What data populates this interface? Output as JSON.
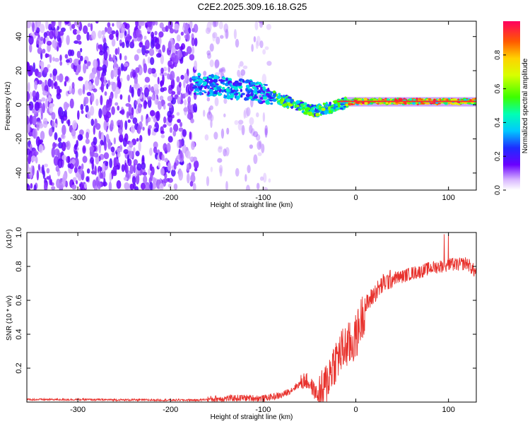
{
  "title": "C2E2.2025.309.16.18.G25",
  "chart_data": [
    {
      "type": "heatmap",
      "xlabel": "Height of straight line (km)",
      "ylabel": "Frequency (Hz)",
      "xlim": [
        -355,
        130
      ],
      "ylim": [
        -50,
        49
      ],
      "xticks": [
        -300,
        -200,
        -100,
        0,
        100
      ],
      "yticks": [
        -40,
        -20,
        0,
        20,
        40
      ],
      "colorbar": {
        "label": "Normalized spectral amplitude",
        "range": [
          0,
          1
        ],
        "ticks": [
          0.0,
          0.2,
          0.4,
          0.6,
          0.8
        ]
      },
      "ridge_trace": {
        "x": [
          -170,
          -150,
          -130,
          -110,
          -100,
          -90,
          -80,
          -70,
          -60,
          -50,
          -45,
          -40,
          -30,
          -20,
          -10,
          0,
          10,
          30,
          60,
          90,
          130
        ],
        "y": [
          12,
          11,
          9,
          8,
          6,
          5,
          3,
          1,
          -1,
          -3,
          -4,
          -3,
          -2,
          0,
          1,
          2,
          2,
          2,
          2,
          2,
          2
        ]
      }
    },
    {
      "type": "line",
      "xlabel": "Height of straight line (km)",
      "ylabel": "SNR (10 * v/v)",
      "y_multiplier": "(x10⁴)",
      "xlim": [
        -355,
        130
      ],
      "ylim": [
        0,
        1.0
      ],
      "xticks": [
        -300,
        -200,
        -100,
        0,
        100
      ],
      "yticks": [
        0.2,
        0.4,
        0.6,
        0.8,
        1.0
      ],
      "series": [
        {
          "color": "#e8312c",
          "x": [
            -355,
            -300,
            -250,
            -200,
            -170,
            -150,
            -120,
            -100,
            -80,
            -70,
            -60,
            -55,
            -50,
            -45,
            -40,
            -35,
            -30,
            -25,
            -20,
            -15,
            -10,
            -5,
            0,
            5,
            10,
            20,
            30,
            40,
            50,
            60,
            70,
            80,
            90,
            100,
            110,
            120,
            130
          ],
          "y": [
            0.015,
            0.015,
            0.013,
            0.012,
            0.012,
            0.02,
            0.025,
            0.022,
            0.04,
            0.07,
            0.11,
            0.13,
            0.11,
            0.07,
            0.03,
            0.06,
            0.14,
            0.22,
            0.26,
            0.3,
            0.33,
            0.34,
            0.38,
            0.47,
            0.56,
            0.64,
            0.7,
            0.73,
            0.74,
            0.76,
            0.77,
            0.79,
            0.8,
            0.81,
            0.81,
            0.82,
            0.76
          ]
        }
      ]
    }
  ]
}
